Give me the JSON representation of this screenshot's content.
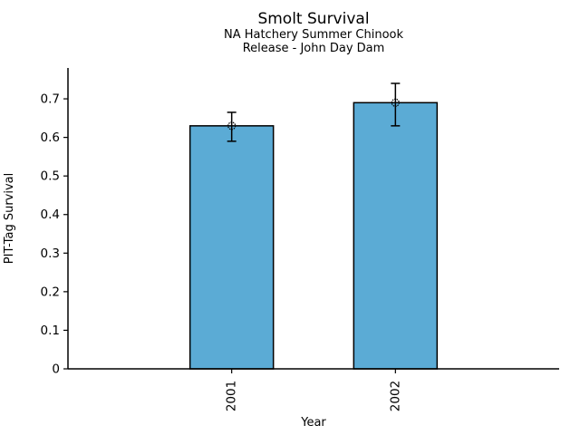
{
  "chart_data": {
    "type": "bar",
    "title": "Smolt Survival",
    "subtitle_lines": [
      "NA Hatchery Summer Chinook",
      "Release - John Day Dam"
    ],
    "xlabel": "Year",
    "ylabel": "PIT-Tag Survival",
    "categories": [
      "2001",
      "2002"
    ],
    "values": [
      0.63,
      0.69
    ],
    "error_bars": [
      {
        "low": 0.59,
        "high": 0.665
      },
      {
        "low": 0.63,
        "high": 0.74
      }
    ],
    "yticks": [
      {
        "value": 0.0,
        "label": "0"
      },
      {
        "value": 0.1,
        "label": "0.1"
      },
      {
        "value": 0.2,
        "label": "0.2"
      },
      {
        "value": 0.3,
        "label": "0.3"
      },
      {
        "value": 0.4,
        "label": "0.4"
      },
      {
        "value": 0.5,
        "label": "0.5"
      },
      {
        "value": 0.6,
        "label": "0.6"
      },
      {
        "value": 0.7,
        "label": "0.7"
      }
    ],
    "ylim": [
      0,
      0.78
    ],
    "grid": false,
    "legend_position": "none",
    "bar_color": "#5BABD5",
    "bar_edge_color": "#000000",
    "error_color": "#000000",
    "background_color": "#ffffff"
  }
}
